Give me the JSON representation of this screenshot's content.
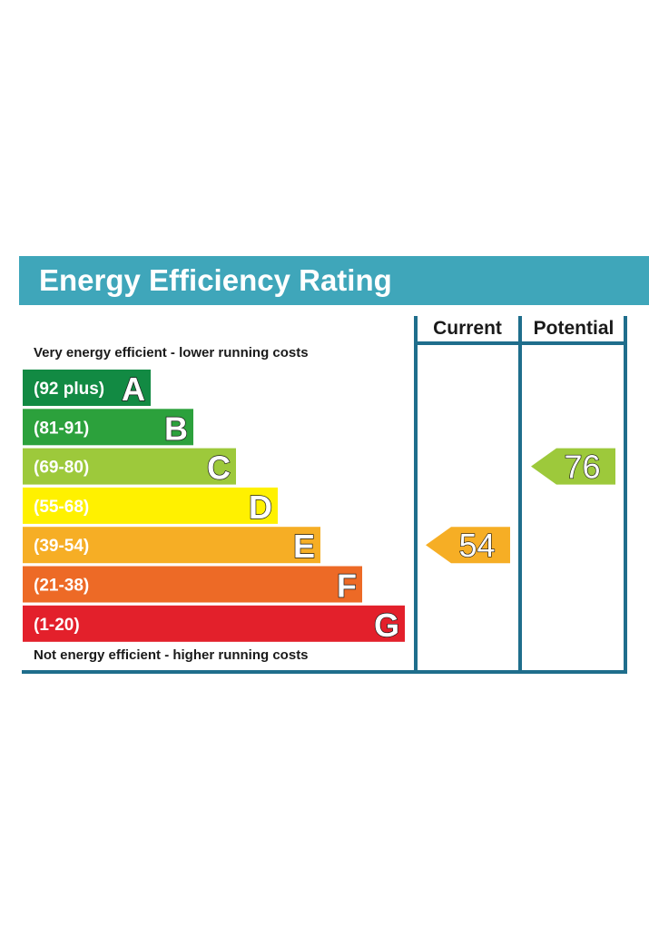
{
  "title": "Energy Efficiency Rating",
  "colors": {
    "title_bg": "#3fa6ba",
    "frame": "#1f6e8c"
  },
  "chart_data": {
    "type": "bar",
    "columns": [
      "Current",
      "Potential"
    ],
    "top_caption": "Very energy efficient - lower running costs",
    "bottom_caption": "Not energy efficient - higher running costs",
    "bands": [
      {
        "letter": "A",
        "range": "(92 plus)",
        "color": "#128a43"
      },
      {
        "letter": "B",
        "range": "(81-91)",
        "color": "#2ca13c"
      },
      {
        "letter": "C",
        "range": "(69-80)",
        "color": "#9dc93b"
      },
      {
        "letter": "D",
        "range": "(55-68)",
        "color": "#fff100"
      },
      {
        "letter": "E",
        "range": "(39-54)",
        "color": "#f6ae25"
      },
      {
        "letter": "F",
        "range": "(21-38)",
        "color": "#ed6a26"
      },
      {
        "letter": "G",
        "range": "(1-20)",
        "color": "#e3202b"
      }
    ],
    "ratings": [
      {
        "column": "Current",
        "value": 54,
        "band": "E",
        "color": "#f6ae25"
      },
      {
        "column": "Potential",
        "value": 76,
        "band": "C",
        "color": "#9dc93b"
      }
    ]
  }
}
